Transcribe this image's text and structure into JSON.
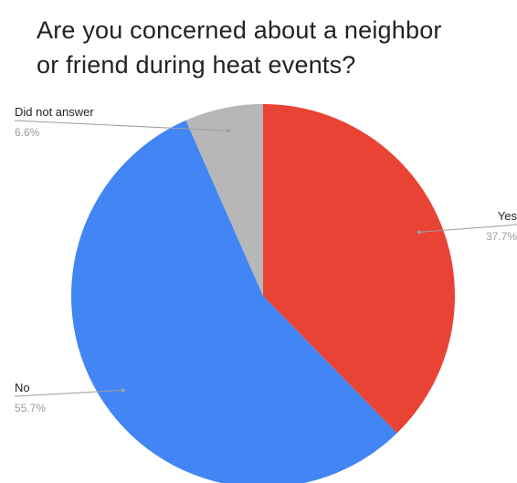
{
  "chart_data": {
    "type": "pie",
    "title": [
      "Are you concerned about a neighbor",
      "or friend during heat events?"
    ],
    "slices": [
      {
        "label": "Yes",
        "value": 37.7,
        "value_label": "37.7%",
        "color": "#e94335"
      },
      {
        "label": "No",
        "value": 55.7,
        "value_label": "55.7%",
        "color": "#4285f4"
      },
      {
        "label": "Did not answer",
        "value": 6.6,
        "value_label": "6.6%",
        "color": "#b7b7b7"
      }
    ],
    "start_angle_deg": 0,
    "direction": "clockwise",
    "label_style": "leader-lines"
  }
}
